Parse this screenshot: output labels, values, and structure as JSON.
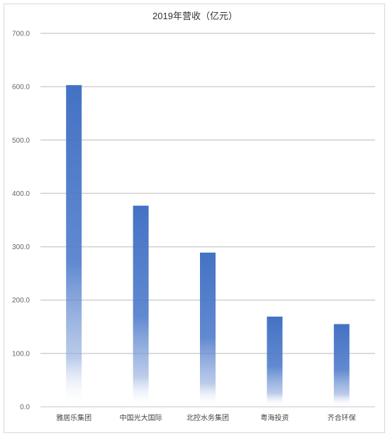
{
  "chart_data": {
    "type": "bar",
    "title": "2019年营收（亿元）",
    "categories": [
      "雅居乐集团",
      "中国光大国际",
      "北控水务集团",
      "粤海投资",
      "齐合环保"
    ],
    "values": [
      603,
      377,
      289,
      169,
      155
    ],
    "ylim": [
      0,
      700
    ],
    "yticks": [
      "0.0",
      "100.0",
      "200.0",
      "300.0",
      "400.0",
      "500.0",
      "600.0",
      "700.0"
    ],
    "grid": true,
    "legend": "none",
    "bar_color": "#4472c4",
    "grid_color": "#d0d0d0"
  }
}
